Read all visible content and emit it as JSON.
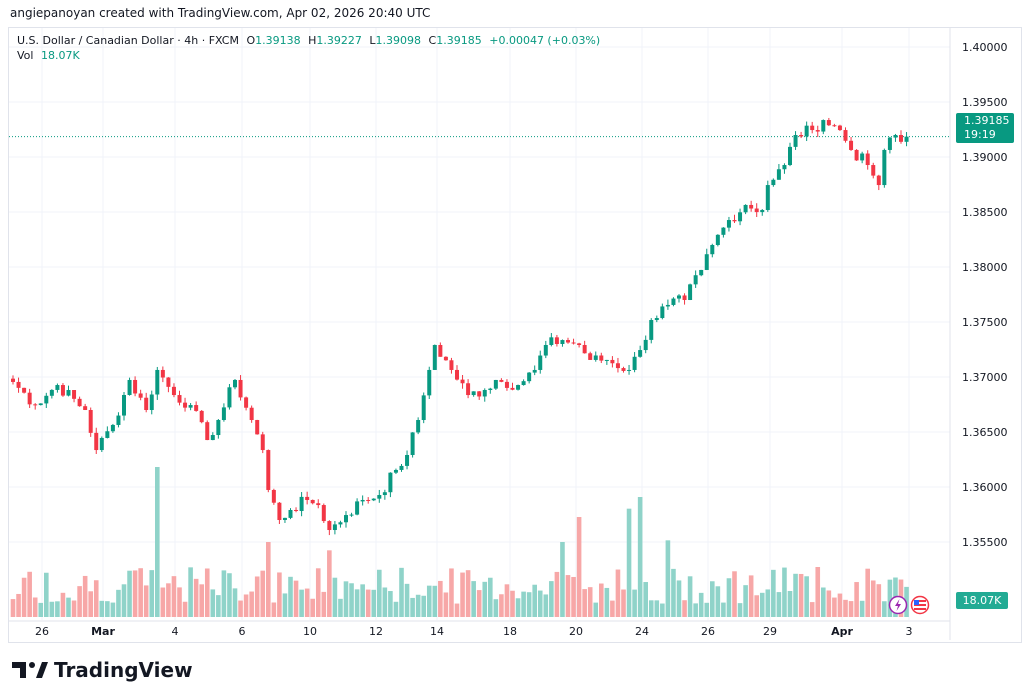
{
  "attribution": "angiepanoyan created with TradingView.com, Apr 02, 2026 20:40 UTC",
  "legend": {
    "symbol": "U.S. Dollar / Canadian Dollar · 4h · FXCM",
    "o_label": "O",
    "o": "1.39138",
    "h_label": "H",
    "h": "1.39227",
    "l_label": "L",
    "l": "1.39098",
    "c_label": "C",
    "c": "1.39185",
    "change": "+0.00047 (+0.03%)",
    "vol_label": "Vol",
    "vol": "18.07K"
  },
  "price_tag": {
    "price": "1.39185",
    "countdown": "19:19"
  },
  "vol_tag": "18.07K",
  "logo_text": "TradingView",
  "colors": {
    "up": "#089981",
    "down": "#f23645",
    "vol_up": "#8fd3c9",
    "vol_down": "#f7a7a7",
    "grid": "#f0f3fa"
  },
  "chart_data": {
    "type": "candlestick",
    "price_axis": [
      "1.40000",
      "1.39500",
      "1.39000",
      "1.38500",
      "1.38000",
      "1.37500",
      "1.37000",
      "1.36500",
      "1.36000",
      "1.35500"
    ],
    "ylim": [
      1.3532,
      1.4022
    ],
    "time_axis": [
      "26",
      "Mar",
      "4",
      "6",
      "10",
      "12",
      "14",
      "18",
      "20",
      "24",
      "26",
      "29",
      "Apr",
      "3"
    ],
    "close_keypoints": [
      [
        0,
        1.36955
      ],
      [
        4,
        1.36745
      ],
      [
        8,
        1.36927
      ],
      [
        13,
        1.367
      ],
      [
        15,
        1.36336
      ],
      [
        18,
        1.36564
      ],
      [
        21,
        1.36973
      ],
      [
        24,
        1.367
      ],
      [
        26,
        1.37064
      ],
      [
        29,
        1.36836
      ],
      [
        32,
        1.36745
      ],
      [
        35,
        1.36427
      ],
      [
        37,
        1.36609
      ],
      [
        40,
        1.36973
      ],
      [
        43,
        1.36609
      ],
      [
        45,
        1.36336
      ],
      [
        46,
        1.35973
      ],
      [
        48,
        1.357
      ],
      [
        50,
        1.35791
      ],
      [
        53,
        1.35882
      ],
      [
        55,
        1.35836
      ],
      [
        57,
        1.35609
      ],
      [
        60,
        1.35745
      ],
      [
        63,
        1.35882
      ],
      [
        66,
        1.35927
      ],
      [
        69,
        1.36155
      ],
      [
        71,
        1.36291
      ],
      [
        73,
        1.36609
      ],
      [
        75,
        1.37064
      ],
      [
        76,
        1.37291
      ],
      [
        79,
        1.37064
      ],
      [
        82,
        1.36836
      ],
      [
        85,
        1.36882
      ],
      [
        87,
        1.36973
      ],
      [
        91,
        1.36927
      ],
      [
        94,
        1.37064
      ],
      [
        96,
        1.37291
      ],
      [
        99,
        1.37336
      ],
      [
        102,
        1.37291
      ],
      [
        104,
        1.37155
      ],
      [
        107,
        1.37155
      ],
      [
        111,
        1.37064
      ],
      [
        113,
        1.37245
      ],
      [
        115,
        1.37518
      ],
      [
        118,
        1.37655
      ],
      [
        121,
        1.377
      ],
      [
        124,
        1.37973
      ],
      [
        126,
        1.382
      ],
      [
        129,
        1.38427
      ],
      [
        132,
        1.38564
      ],
      [
        135,
        1.38518
      ],
      [
        136,
        1.38745
      ],
      [
        139,
        1.38927
      ],
      [
        141,
        1.392
      ],
      [
        144,
        1.39245
      ],
      [
        146,
        1.39336
      ],
      [
        149,
        1.39245
      ],
      [
        151,
        1.39064
      ],
      [
        154,
        1.38927
      ],
      [
        156,
        1.38745
      ],
      [
        157,
        1.39064
      ],
      [
        159,
        1.392
      ],
      [
        160,
        1.39138
      ],
      [
        161,
        1.39185
      ]
    ],
    "last_candle": {
      "open": 1.39138,
      "high": 1.39227,
      "low": 1.39098,
      "close": 1.39185
    },
    "volume_spikes_k": [
      [
        26,
        90
      ],
      [
        46,
        45
      ],
      [
        57,
        40
      ],
      [
        99,
        45
      ],
      [
        102,
        60
      ],
      [
        111,
        65
      ],
      [
        113,
        72
      ],
      [
        118,
        46
      ],
      [
        145,
        30
      ],
      [
        161,
        18.07
      ]
    ],
    "volume_unit": "K"
  }
}
